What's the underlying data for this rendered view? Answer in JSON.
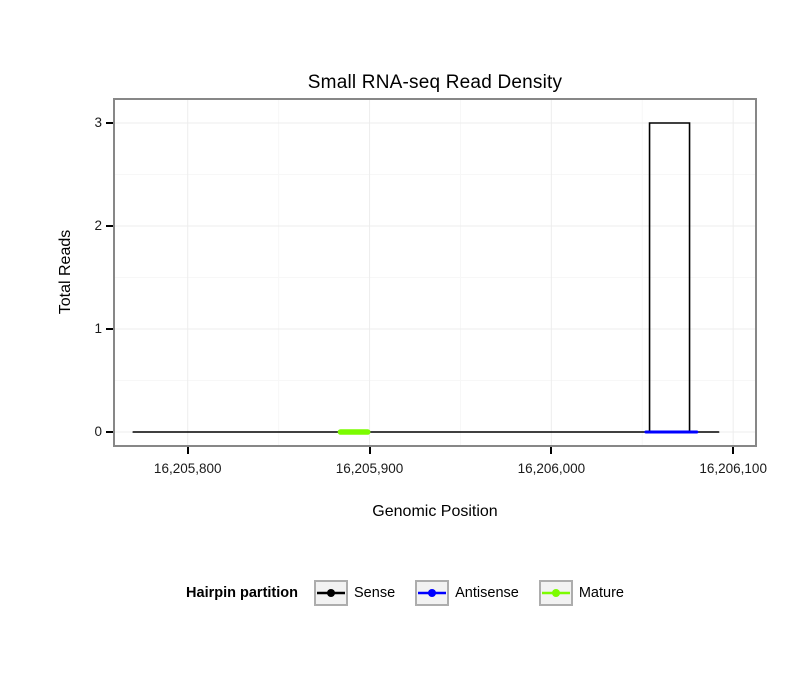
{
  "figure": {
    "title": "Small RNA-seq Read Density",
    "x_axis_label": "Genomic Position",
    "y_axis_label": "Total Reads"
  },
  "chart_data": {
    "type": "line",
    "title": "Small RNA-seq Read Density",
    "xlabel": "Genomic Position",
    "ylabel": "Total Reads",
    "xlim": [
      16205760,
      16206112
    ],
    "ylim": [
      0,
      3
    ],
    "grid": true,
    "legend_position": "bottom",
    "x_ticks": [
      {
        "value": 16205800,
        "label": "16,205,800"
      },
      {
        "value": 16205900,
        "label": "16,205,900"
      },
      {
        "value": 16206000,
        "label": "16,206,000"
      },
      {
        "value": 16206100,
        "label": "16,206,100"
      }
    ],
    "y_ticks": [
      {
        "value": 0,
        "label": "0"
      },
      {
        "value": 1,
        "label": "1"
      },
      {
        "value": 2,
        "label": "2"
      },
      {
        "value": 3,
        "label": "3"
      }
    ],
    "x_minor_gridlines": [
      16205850,
      16205950,
      16206050
    ],
    "y_minor_gridlines": [
      0.5,
      1.5,
      2.5
    ],
    "series": [
      {
        "name": "Sense",
        "color": "#000000",
        "line_width": 1.6,
        "type": "step",
        "points": [
          [
            16205770,
            0
          ],
          [
            16206054,
            0
          ],
          [
            16206054,
            3
          ],
          [
            16206076,
            3
          ],
          [
            16206076,
            0
          ],
          [
            16206092,
            0
          ]
        ]
      },
      {
        "name": "Antisense",
        "color": "#0000FF",
        "line_width": 3,
        "type": "segment",
        "points": [
          [
            16206052,
            0
          ],
          [
            16206080,
            0
          ]
        ]
      },
      {
        "name": "Mature",
        "color": "#7CFC00",
        "line_width": 5.5,
        "type": "segment",
        "points": [
          [
            16205884,
            0
          ],
          [
            16205899,
            0
          ]
        ]
      }
    ],
    "legend": {
      "title": "Hairpin partition",
      "entries": [
        {
          "label": "Sense",
          "color": "#000000"
        },
        {
          "label": "Antisense",
          "color": "#0000FF"
        },
        {
          "label": "Mature",
          "color": "#7CFC00"
        }
      ]
    },
    "style_colors": {
      "panel_border": "#878787",
      "grid_major": "#ededed",
      "grid_minor": "#f7f7f7",
      "tick": "#000000",
      "legend_key_fill": "#f2f2f2",
      "legend_key_border": "#adadad"
    }
  }
}
